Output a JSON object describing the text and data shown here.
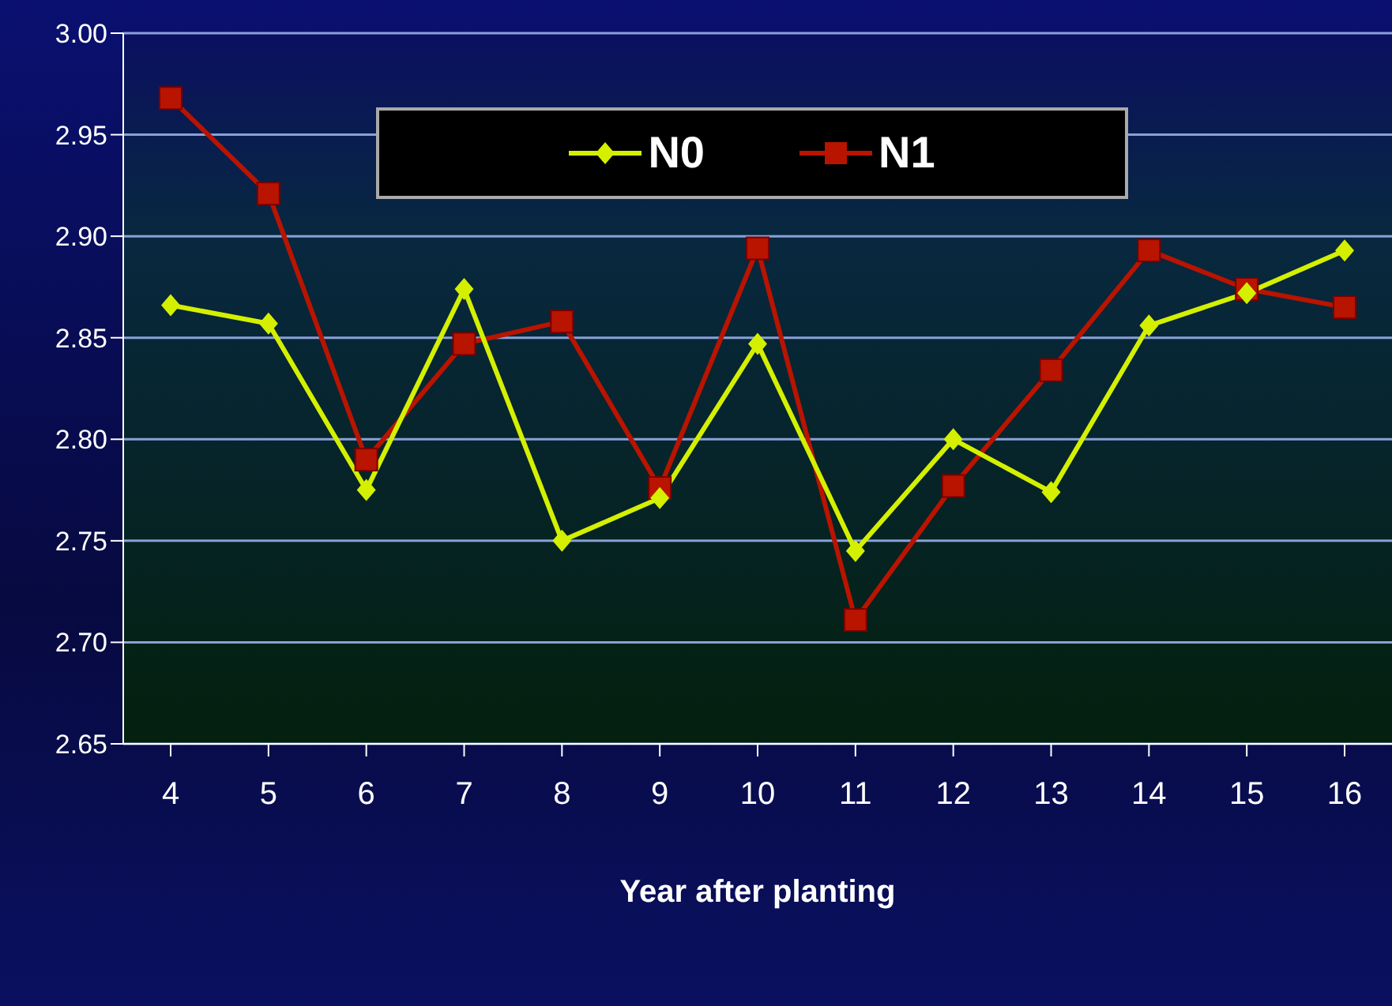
{
  "chart_data": {
    "type": "line",
    "xlabel": "Year after planting",
    "categories": [
      "4",
      "5",
      "6",
      "7",
      "8",
      "9",
      "10",
      "11",
      "12",
      "13",
      "14",
      "15",
      "16"
    ],
    "series": [
      {
        "name": "N0",
        "color": "#d4f000",
        "marker": "diamond",
        "values": [
          2.866,
          2.857,
          2.775,
          2.874,
          2.75,
          2.771,
          2.847,
          2.745,
          2.8,
          2.774,
          2.856,
          2.872,
          2.893
        ]
      },
      {
        "name": "N1",
        "color": "#b81400",
        "marker": "square",
        "values": [
          2.968,
          2.921,
          2.79,
          2.847,
          2.858,
          2.776,
          2.894,
          2.711,
          2.777,
          2.834,
          2.893,
          2.874,
          2.865
        ]
      }
    ],
    "ylim": [
      2.65,
      3.0
    ],
    "yticks": [
      2.65,
      {
        "value": 2.7,
        "label": "2.70"
      },
      2.75,
      {
        "value": 2.8,
        "label": "2.80"
      },
      2.85,
      {
        "value": 2.9,
        "label": "2.90"
      },
      2.95,
      {
        "value": 3.0,
        "label": "3.00"
      }
    ],
    "grid": "y",
    "legend": "top",
    "line_style": "solid"
  }
}
